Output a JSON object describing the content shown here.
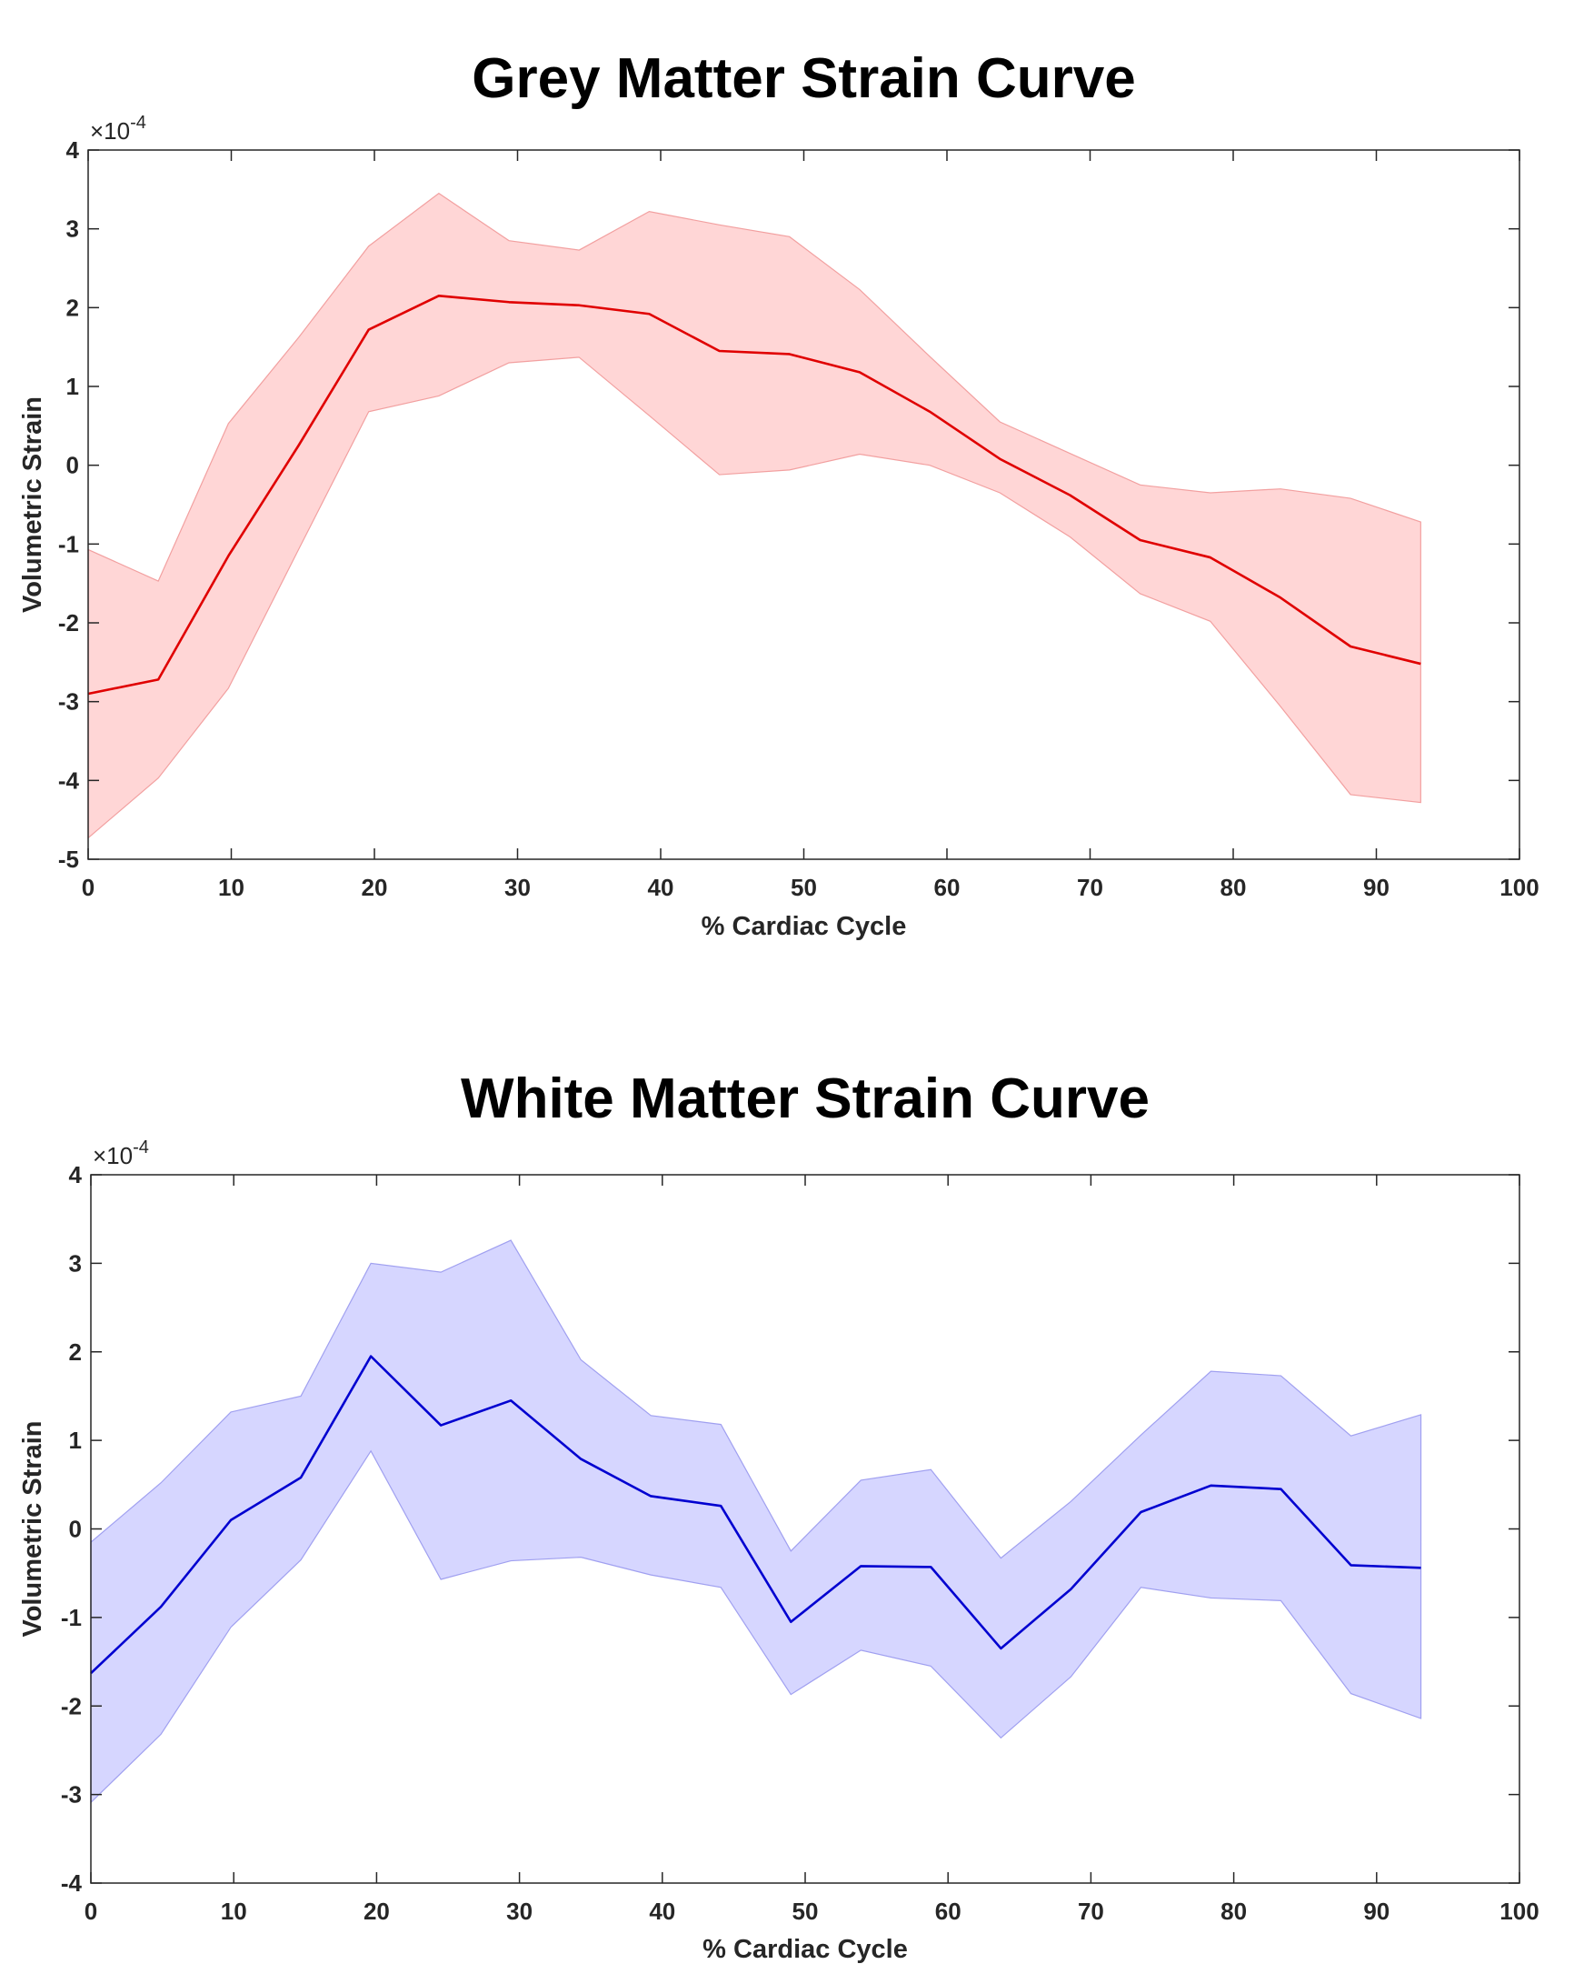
{
  "chart_data": [
    {
      "type": "line",
      "title": "Grey Matter Strain Curve",
      "xlabel": "% Cardiac Cycle",
      "ylabel": "Volumetric Strain",
      "exponent_label": "×10",
      "exponent_power": "-4",
      "xlim": [
        0,
        100
      ],
      "ylim": [
        -5,
        4
      ],
      "xticks": [
        0,
        10,
        20,
        30,
        40,
        50,
        60,
        70,
        80,
        90,
        100
      ],
      "yticks": [
        -5,
        -4,
        -3,
        -2,
        -1,
        0,
        1,
        2,
        3,
        4
      ],
      "line_color": "#e00000",
      "band_color": "#ffd6d6",
      "band_edge_color": "#f2a0a0",
      "series": [
        {
          "name": "mean",
          "x": [
            0,
            4.9,
            9.8,
            14.7,
            19.6,
            24.5,
            29.4,
            34.3,
            39.2,
            44.1,
            49.0,
            53.9,
            58.8,
            63.7,
            68.6,
            73.5,
            78.4,
            83.3,
            88.2,
            93.1
          ],
          "y": [
            -2.9,
            -2.72,
            -1.15,
            0.25,
            1.72,
            2.15,
            2.07,
            2.03,
            1.92,
            1.45,
            1.41,
            1.18,
            0.68,
            0.08,
            -0.38,
            -0.95,
            -1.17,
            -1.68,
            -2.3,
            -2.52
          ]
        },
        {
          "name": "upper",
          "x": [
            0,
            4.9,
            9.8,
            14.7,
            19.6,
            24.5,
            29.4,
            34.3,
            39.2,
            44.1,
            49.0,
            53.9,
            58.8,
            63.7,
            68.6,
            73.5,
            78.4,
            83.3,
            88.2,
            93.1
          ],
          "y": [
            -1.07,
            -1.47,
            0.53,
            1.62,
            2.78,
            3.45,
            2.85,
            2.73,
            3.22,
            3.05,
            2.9,
            2.23,
            1.38,
            0.55,
            0.15,
            -0.25,
            -0.35,
            -0.3,
            -0.42,
            -0.72
          ]
        },
        {
          "name": "lower",
          "x": [
            0,
            4.9,
            9.8,
            14.7,
            19.6,
            24.5,
            29.4,
            34.3,
            39.2,
            44.1,
            49.0,
            53.9,
            58.8,
            63.7,
            68.6,
            73.5,
            78.4,
            83.3,
            88.2,
            93.1
          ],
          "y": [
            -4.73,
            -3.97,
            -2.83,
            -1.07,
            0.68,
            0.88,
            1.3,
            1.37,
            0.63,
            -0.12,
            -0.06,
            0.14,
            0.0,
            -0.35,
            -0.91,
            -1.63,
            -1.98,
            -3.06,
            -4.18,
            -4.28
          ]
        }
      ]
    },
    {
      "type": "line",
      "title": "White Matter Strain Curve",
      "xlabel": "% Cardiac Cycle",
      "ylabel": "Volumetric Strain",
      "exponent_label": "×10",
      "exponent_power": "-4",
      "xlim": [
        0,
        100
      ],
      "ylim": [
        -4,
        4
      ],
      "xticks": [
        0,
        10,
        20,
        30,
        40,
        50,
        60,
        70,
        80,
        90,
        100
      ],
      "yticks": [
        -4,
        -3,
        -2,
        -1,
        0,
        1,
        2,
        3,
        4
      ],
      "line_color": "#0000d0",
      "band_color": "#d6d6ff",
      "band_edge_color": "#a0a0f0",
      "series": [
        {
          "name": "mean",
          "x": [
            0,
            4.9,
            9.8,
            14.7,
            19.6,
            24.5,
            29.4,
            34.3,
            39.2,
            44.1,
            49.0,
            53.9,
            58.8,
            63.7,
            68.6,
            73.5,
            78.4,
            83.3,
            88.2,
            93.1
          ],
          "y": [
            -1.63,
            -0.88,
            0.1,
            0.58,
            1.95,
            1.17,
            1.45,
            0.79,
            0.37,
            0.26,
            -1.05,
            -0.42,
            -0.43,
            -1.35,
            -0.68,
            0.19,
            0.49,
            0.45,
            -0.41,
            -0.44
          ]
        },
        {
          "name": "upper",
          "x": [
            0,
            4.9,
            9.8,
            14.7,
            19.6,
            24.5,
            29.4,
            34.3,
            39.2,
            44.1,
            49.0,
            53.9,
            58.8,
            63.7,
            68.6,
            73.5,
            78.4,
            83.3,
            88.2,
            93.1
          ],
          "y": [
            -0.15,
            0.52,
            1.32,
            1.5,
            3.0,
            2.9,
            3.26,
            1.91,
            1.28,
            1.18,
            -0.25,
            0.55,
            0.67,
            -0.33,
            0.31,
            1.06,
            1.78,
            1.73,
            1.05,
            1.29
          ]
        },
        {
          "name": "lower",
          "x": [
            0,
            4.9,
            9.8,
            14.7,
            19.6,
            24.5,
            29.4,
            34.3,
            39.2,
            44.1,
            49.0,
            53.9,
            58.8,
            63.7,
            68.6,
            73.5,
            78.4,
            83.3,
            88.2,
            93.1
          ],
          "y": [
            -3.09,
            -2.32,
            -1.11,
            -0.35,
            0.88,
            -0.57,
            -0.36,
            -0.32,
            -0.52,
            -0.66,
            -1.87,
            -1.37,
            -1.55,
            -2.36,
            -1.67,
            -0.66,
            -0.78,
            -0.81,
            -1.86,
            -2.14
          ]
        }
      ]
    }
  ]
}
